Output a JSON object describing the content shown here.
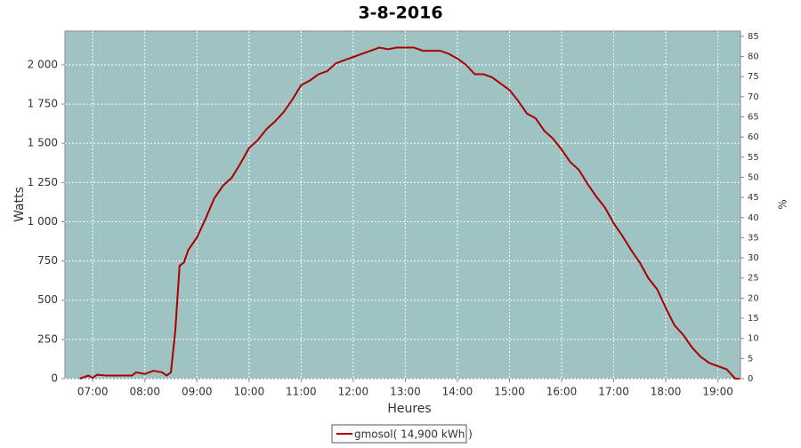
{
  "chart_data": {
    "type": "line",
    "title": "3-8-2016",
    "ylabel": "Watts",
    "xlabel": "Heures",
    "y2label": "%",
    "x": [
      "06:45",
      "06:55",
      "07:00",
      "07:05",
      "07:15",
      "07:30",
      "07:45",
      "07:50",
      "08:00",
      "08:05",
      "08:10",
      "08:20",
      "08:25",
      "08:30",
      "08:35",
      "08:40",
      "08:45",
      "08:50",
      "09:00",
      "09:10",
      "09:20",
      "09:30",
      "09:40",
      "09:50",
      "10:00",
      "10:10",
      "10:20",
      "10:30",
      "10:40",
      "10:50",
      "11:00",
      "11:10",
      "11:20",
      "11:30",
      "11:40",
      "11:50",
      "12:00",
      "12:10",
      "12:20",
      "12:30",
      "12:40",
      "12:50",
      "13:00",
      "13:10",
      "13:20",
      "13:30",
      "13:40",
      "13:50",
      "14:00",
      "14:10",
      "14:20",
      "14:30",
      "14:40",
      "14:50",
      "15:00",
      "15:10",
      "15:20",
      "15:30",
      "15:40",
      "15:50",
      "16:00",
      "16:10",
      "16:20",
      "16:30",
      "16:40",
      "16:50",
      "17:00",
      "17:10",
      "17:20",
      "17:30",
      "17:40",
      "17:50",
      "18:00",
      "18:10",
      "18:20",
      "18:30",
      "18:40",
      "18:50",
      "19:00",
      "19:10",
      "19:20",
      "19:25"
    ],
    "series": [
      {
        "name": "gmosol( 14,900 kWh )",
        "color": "#aa0000",
        "values": [
          0,
          20,
          5,
          25,
          20,
          20,
          20,
          40,
          30,
          40,
          50,
          40,
          20,
          40,
          300,
          720,
          740,
          820,
          900,
          1020,
          1150,
          1230,
          1280,
          1370,
          1470,
          1520,
          1590,
          1640,
          1700,
          1780,
          1870,
          1900,
          1940,
          1960,
          2010,
          2030,
          2050,
          2070,
          2090,
          2110,
          2100,
          2110,
          2110,
          2110,
          2090,
          2090,
          2090,
          2070,
          2040,
          2000,
          1940,
          1940,
          1920,
          1880,
          1840,
          1770,
          1690,
          1660,
          1580,
          1530,
          1460,
          1380,
          1330,
          1240,
          1160,
          1090,
          990,
          910,
          820,
          740,
          640,
          570,
          450,
          340,
          280,
          200,
          140,
          100,
          80,
          60,
          0,
          0
        ]
      }
    ],
    "xlim": [
      "06:28",
      "19:26"
    ],
    "xticks": [
      "07:00",
      "08:00",
      "09:00",
      "10:00",
      "11:00",
      "12:00",
      "13:00",
      "14:00",
      "15:00",
      "16:00",
      "17:00",
      "18:00",
      "19:00"
    ],
    "ylim": [
      0,
      2215
    ],
    "yticks": [
      0,
      250,
      500,
      750,
      {
        "value": 1000,
        "label": "1 000"
      },
      {
        "value": 1250,
        "label": "1 250"
      },
      {
        "value": 1500,
        "label": "1 500"
      },
      {
        "value": 1750,
        "label": "1 750"
      },
      {
        "value": 2000,
        "label": "2 000"
      }
    ],
    "y2lim": [
      0,
      86.3
    ],
    "y2ticks": [
      0,
      5,
      10,
      15,
      20,
      25,
      30,
      35,
      40,
      45,
      50,
      55,
      60,
      65,
      70,
      75,
      80,
      85
    ],
    "grid": true,
    "legend": "bottom"
  }
}
